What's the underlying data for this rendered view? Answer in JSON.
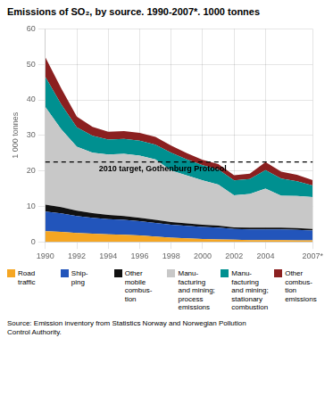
{
  "chart_data": {
    "type": "area",
    "title": "Emissions of SO₂, by source. 1990-2007*. 1000 tonnes",
    "y_label": "1 000 tonnes",
    "source": "Source: Emission inventory from Statistics Norway and Norwegian Pollution\nControl Authority.",
    "annotations": [
      {
        "text": "2010 target, Gothenburg Protocol",
        "y": 22.5,
        "line_style": "dashed"
      }
    ],
    "x": [
      1990,
      1991,
      1992,
      1993,
      1994,
      1995,
      1996,
      1997,
      1998,
      1999,
      2000,
      2001,
      2002,
      2003,
      2004,
      2005,
      2006,
      2007
    ],
    "series": [
      {
        "name": "Road\ntraffic",
        "color": "#F5A623",
        "values": [
          3.0,
          2.8,
          2.5,
          2.3,
          2.1,
          2.0,
          1.8,
          1.5,
          1.2,
          1.0,
          0.8,
          0.7,
          0.6,
          0.5,
          0.5,
          0.5,
          0.4,
          0.4
        ]
      },
      {
        "name": "Ship-\nping",
        "color": "#2255BB",
        "values": [
          5.5,
          5.2,
          4.8,
          4.5,
          4.3,
          4.2,
          4.0,
          3.8,
          3.6,
          3.5,
          3.4,
          3.3,
          3.0,
          3.0,
          3.0,
          3.0,
          3.0,
          2.8
        ]
      },
      {
        "name": "Other\nmobile\ncombus-\ntion",
        "color": "#111111",
        "values": [
          2.0,
          1.8,
          1.5,
          1.3,
          1.2,
          1.1,
          1.0,
          0.9,
          0.8,
          0.7,
          0.6,
          0.6,
          0.5,
          0.5,
          0.5,
          0.5,
          0.5,
          0.4
        ]
      },
      {
        "name": "Manu-\nfacturing\nand mining;\nprocess\nemissions",
        "color": "#C8C8C8",
        "values": [
          27.5,
          22.0,
          18.0,
          17.0,
          17.0,
          17.5,
          17.5,
          17.0,
          14.5,
          13.5,
          12.5,
          11.5,
          9.0,
          9.5,
          11.0,
          9.0,
          9.0,
          9.0
        ]
      },
      {
        "name": "Manu-\nfacturing\nand mining;\nstationary\ncombustion",
        "color": "#009090",
        "values": [
          8.5,
          7.0,
          5.5,
          4.8,
          4.2,
          4.2,
          4.2,
          4.2,
          5.0,
          4.5,
          4.3,
          4.3,
          4.2,
          4.2,
          5.2,
          4.8,
          4.2,
          3.3
        ]
      },
      {
        "name": "Other\ncombus-\ntion\nemissions",
        "color": "#8B2020",
        "values": [
          5.5,
          4.5,
          3.0,
          2.5,
          2.2,
          2.2,
          2.2,
          2.2,
          2.0,
          1.8,
          1.5,
          1.5,
          1.5,
          1.5,
          2.3,
          2.0,
          1.8,
          1.5
        ]
      }
    ],
    "xlim": [
      1990,
      2007
    ],
    "xticks": [
      1990,
      1992,
      1994,
      1996,
      1998,
      2000,
      2002,
      2004,
      {
        "value": 2007,
        "label": "2007*"
      }
    ],
    "ylim": [
      0,
      60
    ],
    "yticks": [
      0,
      10,
      20,
      30,
      40,
      50,
      60
    ],
    "stacked": true,
    "grid": true,
    "legend": "bottom"
  }
}
